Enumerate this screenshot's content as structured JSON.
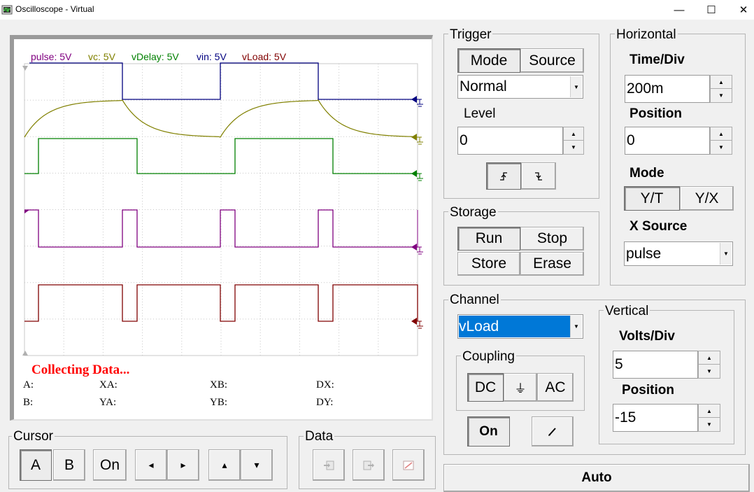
{
  "window": {
    "title": "Oscilloscope - Virtual",
    "minimize_glyph": "—",
    "maximize_glyph": "☐",
    "close_glyph": "✕"
  },
  "screen": {
    "channel_labels": [
      {
        "text": "pulse: 5V",
        "color": "#800080"
      },
      {
        "text": "vc: 5V",
        "color": "#808000"
      },
      {
        "text": "vDelay: 5V",
        "color": "#008000"
      },
      {
        "text": "vin: 5V",
        "color": "#000080"
      },
      {
        "text": "vLoad: 5V",
        "color": "#800000"
      }
    ],
    "status": "Collecting Data...",
    "readouts": {
      "a": "A:",
      "b": "B:",
      "xa": "XA:",
      "ya": "YA:",
      "xb": "XB:",
      "yb": "YB:",
      "dx": "DX:",
      "dy": "DY:"
    }
  },
  "trigger": {
    "title": "Trigger",
    "mode_label": "Mode",
    "source_label": "Source",
    "mode_value": "Normal",
    "level_label": "Level",
    "level_value": "0",
    "rising_icon": "rising-edge-icon",
    "falling_icon": "falling-edge-icon"
  },
  "horizontal": {
    "title": "Horizontal",
    "time_div_label": "Time/Div",
    "time_div_value": "200m",
    "position_label": "Position",
    "position_value": "0",
    "mode_label": "Mode",
    "yt_label": "Y/T",
    "yx_label": "Y/X",
    "x_source_label": "X Source",
    "x_source_value": "pulse"
  },
  "storage": {
    "title": "Storage",
    "run_label": "Run",
    "stop_label": "Stop",
    "store_label": "Store",
    "erase_label": "Erase"
  },
  "channel": {
    "title": "Channel",
    "selected": "vLoad",
    "coupling_title": "Coupling",
    "dc_label": "DC",
    "ground_glyph": "⏚",
    "ac_label": "AC",
    "on_label": "On",
    "pen_icon": "pen-icon"
  },
  "vertical": {
    "title": "Vertical",
    "volts_div_label": "Volts/Div",
    "volts_div_value": "5",
    "position_label": "Position",
    "position_value": "-15"
  },
  "cursor": {
    "title": "Cursor",
    "a_label": "A",
    "b_label": "B",
    "on_label": "On",
    "left_glyph": "◂",
    "right_glyph": "▸",
    "up_glyph": "▴",
    "down_glyph": "▾"
  },
  "data_group": {
    "title": "Data"
  },
  "auto_label": "Auto",
  "colors": {
    "pulse": "#800080",
    "vc": "#808000",
    "vdelay": "#008000",
    "vin": "#000080",
    "vload": "#800000",
    "status": "#ff0000",
    "selection": "#0078d7"
  }
}
